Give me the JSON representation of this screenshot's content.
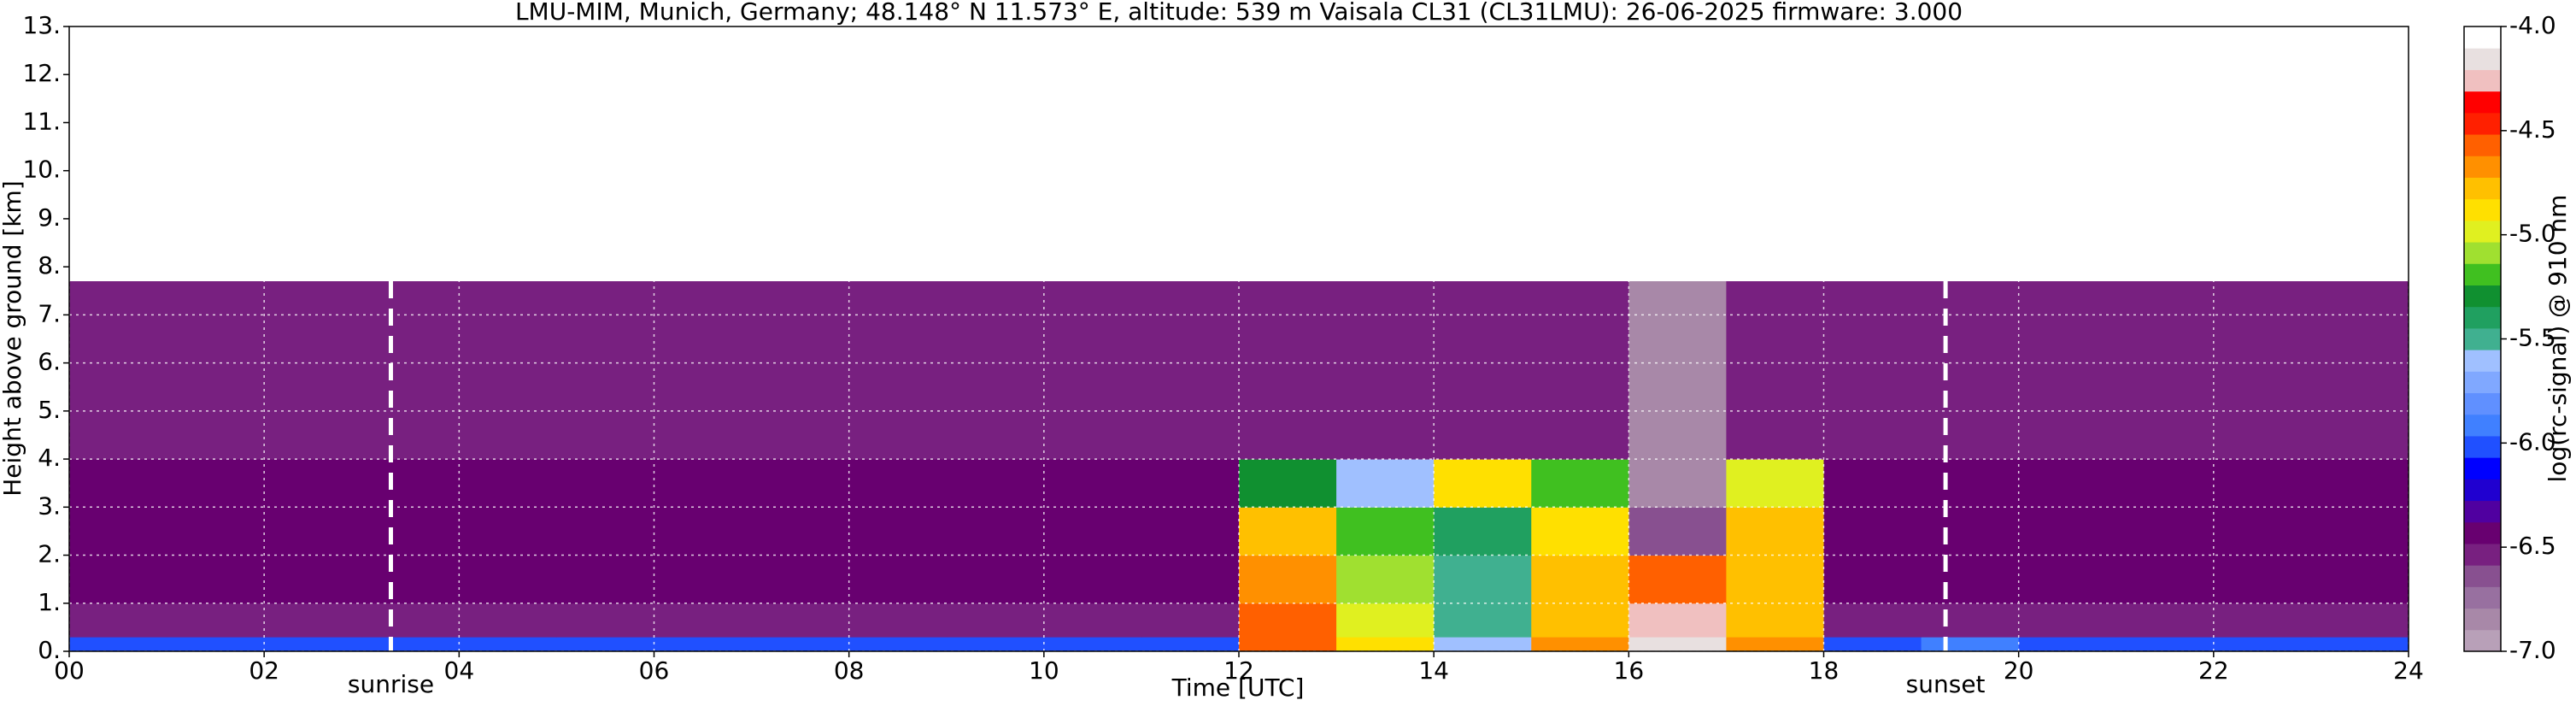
{
  "chart_data": {
    "type": "heatmap",
    "title": "LMU-MIM, Munich, Germany; 48.148° N 11.573° E, altitude: 539 m    Vaisala CL31 (CL31LMU): 26-06-2025    firmware: 3.000",
    "x_label": "Time [UTC]",
    "y_label": "Height above ground [km]",
    "colorbar_label": "log(rc-signal) @ 910 nm",
    "xlim": [
      0,
      24
    ],
    "ylim": [
      0,
      13
    ],
    "xticks": [
      {
        "value": 0,
        "label": "00"
      },
      {
        "value": 2,
        "label": "02"
      },
      {
        "value": 4,
        "label": "04"
      },
      {
        "value": 6,
        "label": "06"
      },
      {
        "value": 8,
        "label": "08"
      },
      10,
      12,
      14,
      16,
      18,
      20,
      22,
      24
    ],
    "yticks": [
      {
        "value": 0,
        "label": "0."
      },
      {
        "value": 1,
        "label": "1."
      },
      {
        "value": 2,
        "label": "2."
      },
      {
        "value": 3,
        "label": "3."
      },
      {
        "value": 4,
        "label": "4."
      },
      {
        "value": 5,
        "label": "5."
      },
      {
        "value": 6,
        "label": "6."
      },
      {
        "value": 7,
        "label": "7."
      },
      {
        "value": 8,
        "label": "8."
      },
      {
        "value": 9,
        "label": "9."
      },
      {
        "value": 10,
        "label": "10."
      },
      {
        "value": 11,
        "label": "11."
      },
      {
        "value": 12,
        "label": "12."
      },
      {
        "value": 13,
        "label": "13."
      }
    ],
    "grid": true,
    "x_edges": [
      0,
      1,
      2,
      3,
      4,
      5,
      6,
      7,
      8,
      9,
      10,
      11,
      12,
      13,
      14,
      15,
      16,
      17,
      18,
      19,
      20,
      21,
      22,
      23,
      24
    ],
    "y_edges": [
      0,
      0.3,
      1,
      2,
      3,
      4,
      7.7
    ],
    "values": [
      [
        -6.0,
        -6.0,
        -6.0,
        -6.0,
        -6.0,
        -6.0,
        -6.0,
        -6.0,
        -6.0,
        -6.0,
        -6.0,
        -6.0,
        -4.6,
        -4.9,
        -5.6,
        -4.7,
        -4.2,
        -4.7,
        -6.0,
        -5.9,
        -6.0,
        -6.0,
        -6.0,
        -6.0
      ],
      [
        -6.5,
        -6.5,
        -6.5,
        -6.5,
        -6.5,
        -6.5,
        -6.5,
        -6.5,
        -6.5,
        -6.5,
        -6.5,
        -6.5,
        -4.6,
        -5.0,
        -5.5,
        -4.8,
        -4.3,
        -4.8,
        -6.5,
        -6.5,
        -6.5,
        -6.5,
        -6.5,
        -6.5
      ],
      [
        -6.4,
        -6.4,
        -6.4,
        -6.4,
        -6.4,
        -6.4,
        -6.4,
        -6.4,
        -6.4,
        -6.4,
        -6.4,
        -6.4,
        -4.7,
        -5.1,
        -5.5,
        -4.8,
        -4.6,
        -4.8,
        -6.4,
        -6.4,
        -6.4,
        -6.4,
        -6.4,
        -6.4
      ],
      [
        -6.4,
        -6.4,
        -6.4,
        -6.4,
        -6.4,
        -6.4,
        -6.4,
        -6.4,
        -6.4,
        -6.4,
        -6.4,
        -6.4,
        -4.8,
        -5.2,
        -5.4,
        -4.9,
        -6.6,
        -4.8,
        -6.4,
        -6.4,
        -6.4,
        -6.4,
        -6.4,
        -6.4
      ],
      [
        -6.4,
        -6.4,
        -6.4,
        -6.4,
        -6.4,
        -6.4,
        -6.4,
        -6.4,
        -6.4,
        -6.4,
        -6.4,
        -6.4,
        -5.3,
        -5.6,
        -4.9,
        -5.2,
        -6.8,
        -5.0,
        -6.4,
        -6.4,
        -6.4,
        -6.4,
        -6.4,
        -6.4
      ],
      [
        -6.5,
        -6.5,
        -6.5,
        -6.5,
        -6.5,
        -6.5,
        -6.5,
        -6.5,
        -6.5,
        -6.5,
        -6.5,
        -6.5,
        -6.5,
        -6.5,
        -6.5,
        -6.5,
        -6.8,
        -6.5,
        -6.5,
        -6.5,
        -6.5,
        -6.5,
        -6.5,
        -6.5
      ]
    ],
    "clim": [
      -7.0,
      -4.0
    ],
    "cticks": [
      {
        "value": -7.0,
        "label": "-7.0"
      },
      {
        "value": -6.5,
        "label": "-6.5"
      },
      {
        "value": -6.0,
        "label": "-6.0"
      },
      {
        "value": -5.5,
        "label": "-5.5"
      },
      {
        "value": -5.0,
        "label": "-5.0"
      },
      {
        "value": -4.5,
        "label": "-4.5"
      },
      {
        "value": -4.0,
        "label": "-4.0"
      }
    ],
    "colormap": [
      "#b8a0b8",
      "#a888a8",
      "#9870a0",
      "#885090",
      "#782080",
      "#680070",
      "#5000a0",
      "#2000d0",
      "#0000ff",
      "#2050ff",
      "#4080ff",
      "#6090ff",
      "#80a8ff",
      "#a0c0ff",
      "#40b090",
      "#20a060",
      "#109030",
      "#40c020",
      "#a0e030",
      "#e0f020",
      "#ffe000",
      "#ffc000",
      "#ff9000",
      "#ff6000",
      "#ff2000",
      "#ff0000",
      "#f0c0c0",
      "#e8e0e0",
      "#ffffff"
    ],
    "annotations": [
      {
        "text": "sunrise",
        "x": 3.3
      },
      {
        "text": "sunset",
        "x": 19.25
      }
    ]
  }
}
